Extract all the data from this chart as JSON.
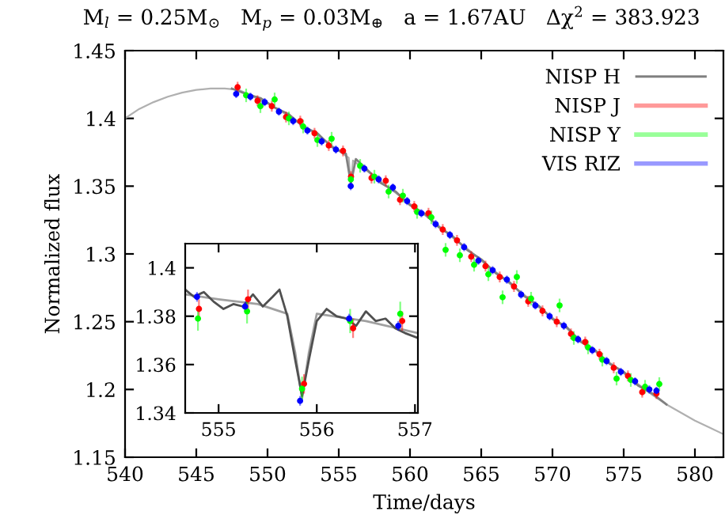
{
  "chart_data": [
    {
      "type": "scatter",
      "title": "M$_{l}$ = 0.25M$_{⊙}$   M$_{p}$ = 0.03M$_{⊕}$   a = 1.67AU   Δχ$^{2}$ = 383.923",
      "xlabel": "Time/days",
      "ylabel": "Normalized flux",
      "xlim": [
        540,
        582
      ],
      "ylim": [
        1.15,
        1.45
      ],
      "xticks": [
        540,
        545,
        550,
        555,
        560,
        565,
        570,
        575,
        580
      ],
      "yticks": [
        1.15,
        1.2,
        1.25,
        1.3,
        1.35,
        1.4,
        1.45
      ],
      "legend": "top right",
      "grid": false,
      "series": [
        {
          "type": "line",
          "color": "#b0b0b0",
          "x": [
            540,
            541,
            542,
            543,
            544,
            545,
            546,
            547,
            548,
            549,
            550,
            551,
            552,
            553,
            554,
            555,
            555.7,
            555.85,
            556,
            557,
            558,
            559,
            560,
            561,
            562,
            563,
            564,
            565,
            566,
            567,
            568,
            569,
            570,
            571,
            572,
            573,
            574,
            575,
            576,
            577,
            578,
            579,
            580,
            581,
            582
          ],
          "values": [
            1.4,
            1.407,
            1.412,
            1.416,
            1.419,
            1.421,
            1.422,
            1.422,
            1.421,
            1.416,
            1.411,
            1.405,
            1.398,
            1.391,
            1.384,
            1.376,
            1.371,
            1.35,
            1.369,
            1.361,
            1.353,
            1.345,
            1.337,
            1.329,
            1.321,
            1.312,
            1.304,
            1.295,
            1.287,
            1.278,
            1.27,
            1.261,
            1.253,
            1.245,
            1.236,
            1.228,
            1.22,
            1.212,
            1.204,
            1.196,
            1.189,
            1.183,
            1.177,
            1.172,
            1.167
          ]
        },
        {
          "type": "line",
          "name": "NISP H",
          "color": "#808080",
          "x": [
            547.5,
            548.5,
            549.5,
            550.5,
            551.5,
            552.5,
            553.5,
            554.5,
            555.5,
            555.85,
            556.2,
            557,
            558,
            559,
            560,
            561,
            562,
            563,
            564,
            565,
            566,
            567,
            568,
            569,
            570,
            571,
            572,
            573,
            574,
            575,
            576,
            577,
            578
          ],
          "values": [
            1.422,
            1.418,
            1.415,
            1.408,
            1.403,
            1.394,
            1.389,
            1.379,
            1.374,
            1.352,
            1.37,
            1.362,
            1.352,
            1.346,
            1.336,
            1.33,
            1.32,
            1.313,
            1.303,
            1.296,
            1.286,
            1.279,
            1.269,
            1.262,
            1.252,
            1.246,
            1.235,
            1.229,
            1.219,
            1.213,
            1.203,
            1.197,
            1.189
          ]
        },
        {
          "name": "NISP J",
          "marker": "circle",
          "color": "#ff0000",
          "x": [
            547.9,
            549.3,
            550.3,
            551.3,
            552.3,
            553.3,
            554.3,
            555.3,
            555.86,
            557.3,
            558.3,
            559.3,
            560.3,
            561.3,
            562.3,
            563.3,
            564.3,
            565.3,
            566.3,
            567.3,
            568.3,
            569.3,
            570.3,
            571.3,
            572.3,
            573.3,
            574.3,
            575.3,
            576.3,
            577.3
          ],
          "values": [
            1.423,
            1.413,
            1.409,
            1.401,
            1.398,
            1.389,
            1.38,
            1.376,
            1.357,
            1.356,
            1.354,
            1.34,
            1.335,
            1.33,
            1.318,
            1.31,
            1.298,
            1.291,
            1.283,
            1.276,
            1.265,
            1.258,
            1.25,
            1.241,
            1.235,
            1.226,
            1.216,
            1.21,
            1.198,
            1.197
          ],
          "errors": [
            0.004,
            0.004,
            0.004,
            0.004,
            0.004,
            0.004,
            0.004,
            0.004,
            0.004,
            0.004,
            0.004,
            0.004,
            0.004,
            0.004,
            0.004,
            0.004,
            0.004,
            0.004,
            0.004,
            0.004,
            0.004,
            0.004,
            0.004,
            0.004,
            0.004,
            0.004,
            0.004,
            0.004,
            0.004,
            0.004
          ]
        },
        {
          "name": "NISP Y",
          "marker": "circle",
          "color": "#00ff00",
          "x": [
            548.5,
            549.5,
            550.5,
            551.5,
            552.5,
            553.5,
            554.5,
            555.85,
            556.5,
            557.5,
            558.5,
            559.5,
            560.5,
            561.5,
            562.5,
            563.5,
            564.5,
            565.5,
            566.5,
            567.5,
            568.5,
            570.5,
            571.5,
            572.5,
            573.5,
            574.5,
            575.5,
            576.5,
            577.5
          ],
          "values": [
            1.417,
            1.409,
            1.414,
            1.4,
            1.394,
            1.384,
            1.385,
            1.355,
            1.365,
            1.357,
            1.346,
            1.343,
            1.331,
            1.327,
            1.303,
            1.299,
            1.292,
            1.285,
            1.268,
            1.283,
            1.267,
            1.262,
            1.238,
            1.231,
            1.222,
            1.208,
            1.207,
            1.202,
            1.204
          ],
          "errors": [
            0.005,
            0.005,
            0.005,
            0.005,
            0.005,
            0.005,
            0.005,
            null,
            0.005,
            0.005,
            0.005,
            0.005,
            0.005,
            0.005,
            0.005,
            0.005,
            0.005,
            0.005,
            0.005,
            0.005,
            0.005,
            0.005,
            0.005,
            0.005,
            0.005,
            0.005,
            0.005,
            0.005,
            0.005
          ]
        },
        {
          "name": "VIS RIZ",
          "marker": "circle",
          "color": "#0000ff",
          "x": [
            547.8,
            548.8,
            549.8,
            550.8,
            551.8,
            552.8,
            553.8,
            554.8,
            555.84,
            556.8,
            557.8,
            558.8,
            559.8,
            560.8,
            561.8,
            562.8,
            563.8,
            564.8,
            565.8,
            566.8,
            567.8,
            568.8,
            569.8,
            570.8,
            571.8,
            572.8,
            573.8,
            574.8,
            575.8,
            576.8,
            577.3
          ],
          "values": [
            1.418,
            1.416,
            1.412,
            1.405,
            1.398,
            1.391,
            1.383,
            1.377,
            1.35,
            1.363,
            1.355,
            1.349,
            1.339,
            1.33,
            1.322,
            1.314,
            1.305,
            1.295,
            1.288,
            1.281,
            1.27,
            1.262,
            1.254,
            1.247,
            1.237,
            1.229,
            1.221,
            1.213,
            1.206,
            1.2,
            1.199
          ],
          "errors": [
            0.003,
            0.003,
            0.003,
            0.003,
            0.003,
            0.003,
            0.003,
            0.003,
            0.003,
            0.003,
            0.003,
            0.003,
            0.003,
            0.003,
            0.003,
            0.003,
            0.003,
            0.003,
            0.003,
            0.003,
            0.003,
            0.003,
            0.003,
            0.003,
            0.003,
            0.003,
            0.003,
            0.003,
            0.003,
            0.003,
            0.003
          ]
        }
      ]
    },
    {
      "type": "scatter",
      "xlim": [
        554.66,
        557.03
      ],
      "ylim": [
        1.34,
        1.41
      ],
      "xticks": [
        555,
        556,
        557
      ],
      "yticks": [
        1.34,
        1.36,
        1.38,
        1.4
      ],
      "grid": false,
      "series": [
        {
          "type": "line",
          "color": "#a0a0a0",
          "x": [
            554.66,
            555.0,
            555.4,
            555.7,
            555.78,
            555.85,
            555.92,
            556.0,
            556.5,
            557.03
          ],
          "values": [
            1.389,
            1.387,
            1.385,
            1.381,
            1.365,
            1.346,
            1.365,
            1.381,
            1.378,
            1.373
          ]
        },
        {
          "type": "line",
          "color": "#505050",
          "x": [
            554.66,
            554.75,
            554.85,
            554.95,
            555.05,
            555.15,
            555.25,
            555.35,
            555.45,
            555.55,
            555.62,
            555.7,
            555.78,
            555.85,
            555.92,
            556.0,
            556.1,
            556.2,
            556.3,
            556.4,
            556.5,
            556.6,
            556.7,
            556.8,
            556.9,
            557.03
          ],
          "values": [
            1.391,
            1.388,
            1.39,
            1.386,
            1.383,
            1.385,
            1.384,
            1.389,
            1.384,
            1.388,
            1.391,
            1.38,
            1.362,
            1.347,
            1.362,
            1.378,
            1.383,
            1.38,
            1.379,
            1.376,
            1.382,
            1.378,
            1.379,
            1.375,
            1.373,
            1.371
          ]
        },
        {
          "color": "#ff0000",
          "marker": "circle",
          "x": [
            554.8,
            555.3,
            555.87,
            556.37,
            556.87
          ],
          "values": [
            1.383,
            1.387,
            1.352,
            1.375,
            1.378
          ],
          "errors": [
            0.004,
            0.004,
            0.004,
            0.004,
            0.004
          ]
        },
        {
          "color": "#00ff00",
          "marker": "circle",
          "x": [
            554.79,
            555.29,
            555.85,
            556.34,
            556.85
          ],
          "values": [
            1.379,
            1.382,
            1.35,
            1.378,
            1.381
          ],
          "errors": [
            0.005,
            0.005,
            0.005,
            0.005,
            0.005
          ]
        },
        {
          "color": "#0000ff",
          "marker": "circle",
          "x": [
            554.78,
            555.27,
            555.83,
            556.33,
            556.83
          ],
          "values": [
            1.388,
            1.384,
            1.345,
            1.379,
            1.376
          ],
          "errors": [
            0.002,
            0.002,
            0.002,
            0.002,
            0.002
          ]
        }
      ]
    }
  ]
}
